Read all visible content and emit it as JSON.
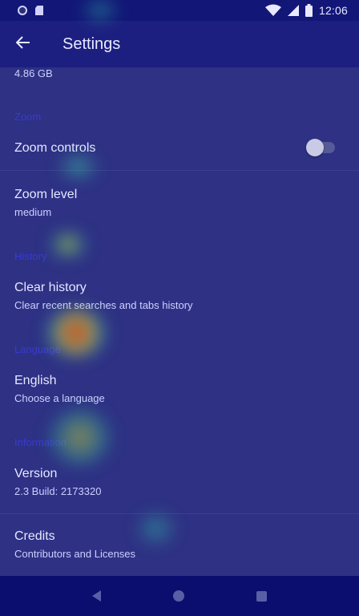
{
  "status_bar": {
    "time": "12:06",
    "icons": [
      "notification-dot-icon",
      "sd-card-icon",
      "wifi-icon",
      "signal-icon",
      "battery-icon"
    ]
  },
  "app_bar": {
    "title": "Settings",
    "back_icon": "arrow-back-icon"
  },
  "settings": {
    "storage_value": "4.86 GB",
    "zoom_section": "Zoom",
    "zoom_controls": {
      "title": "Zoom controls",
      "enabled": false
    },
    "zoom_level": {
      "title": "Zoom level",
      "summary": "medium"
    },
    "history_section": "History",
    "clear_history": {
      "title": "Clear history",
      "summary": "Clear recent searches and tabs history"
    },
    "language_section": "Language",
    "language": {
      "title": "English",
      "summary": "Choose a language"
    },
    "information_section": "Information",
    "version": {
      "title": "Version",
      "summary": "2.3 Build: 2173320"
    },
    "credits": {
      "title": "Credits",
      "summary": "Contributors and Licenses"
    }
  },
  "nav_bar": {
    "icons": [
      "nav-back-icon",
      "nav-home-icon",
      "nav-recents-icon"
    ]
  },
  "colors": {
    "app_bar": "#1c1f7f",
    "status_bar": "#121677",
    "background": "#2e3184",
    "section_header": "#3a3ad0",
    "nav_bar": "#0b0e6e"
  }
}
